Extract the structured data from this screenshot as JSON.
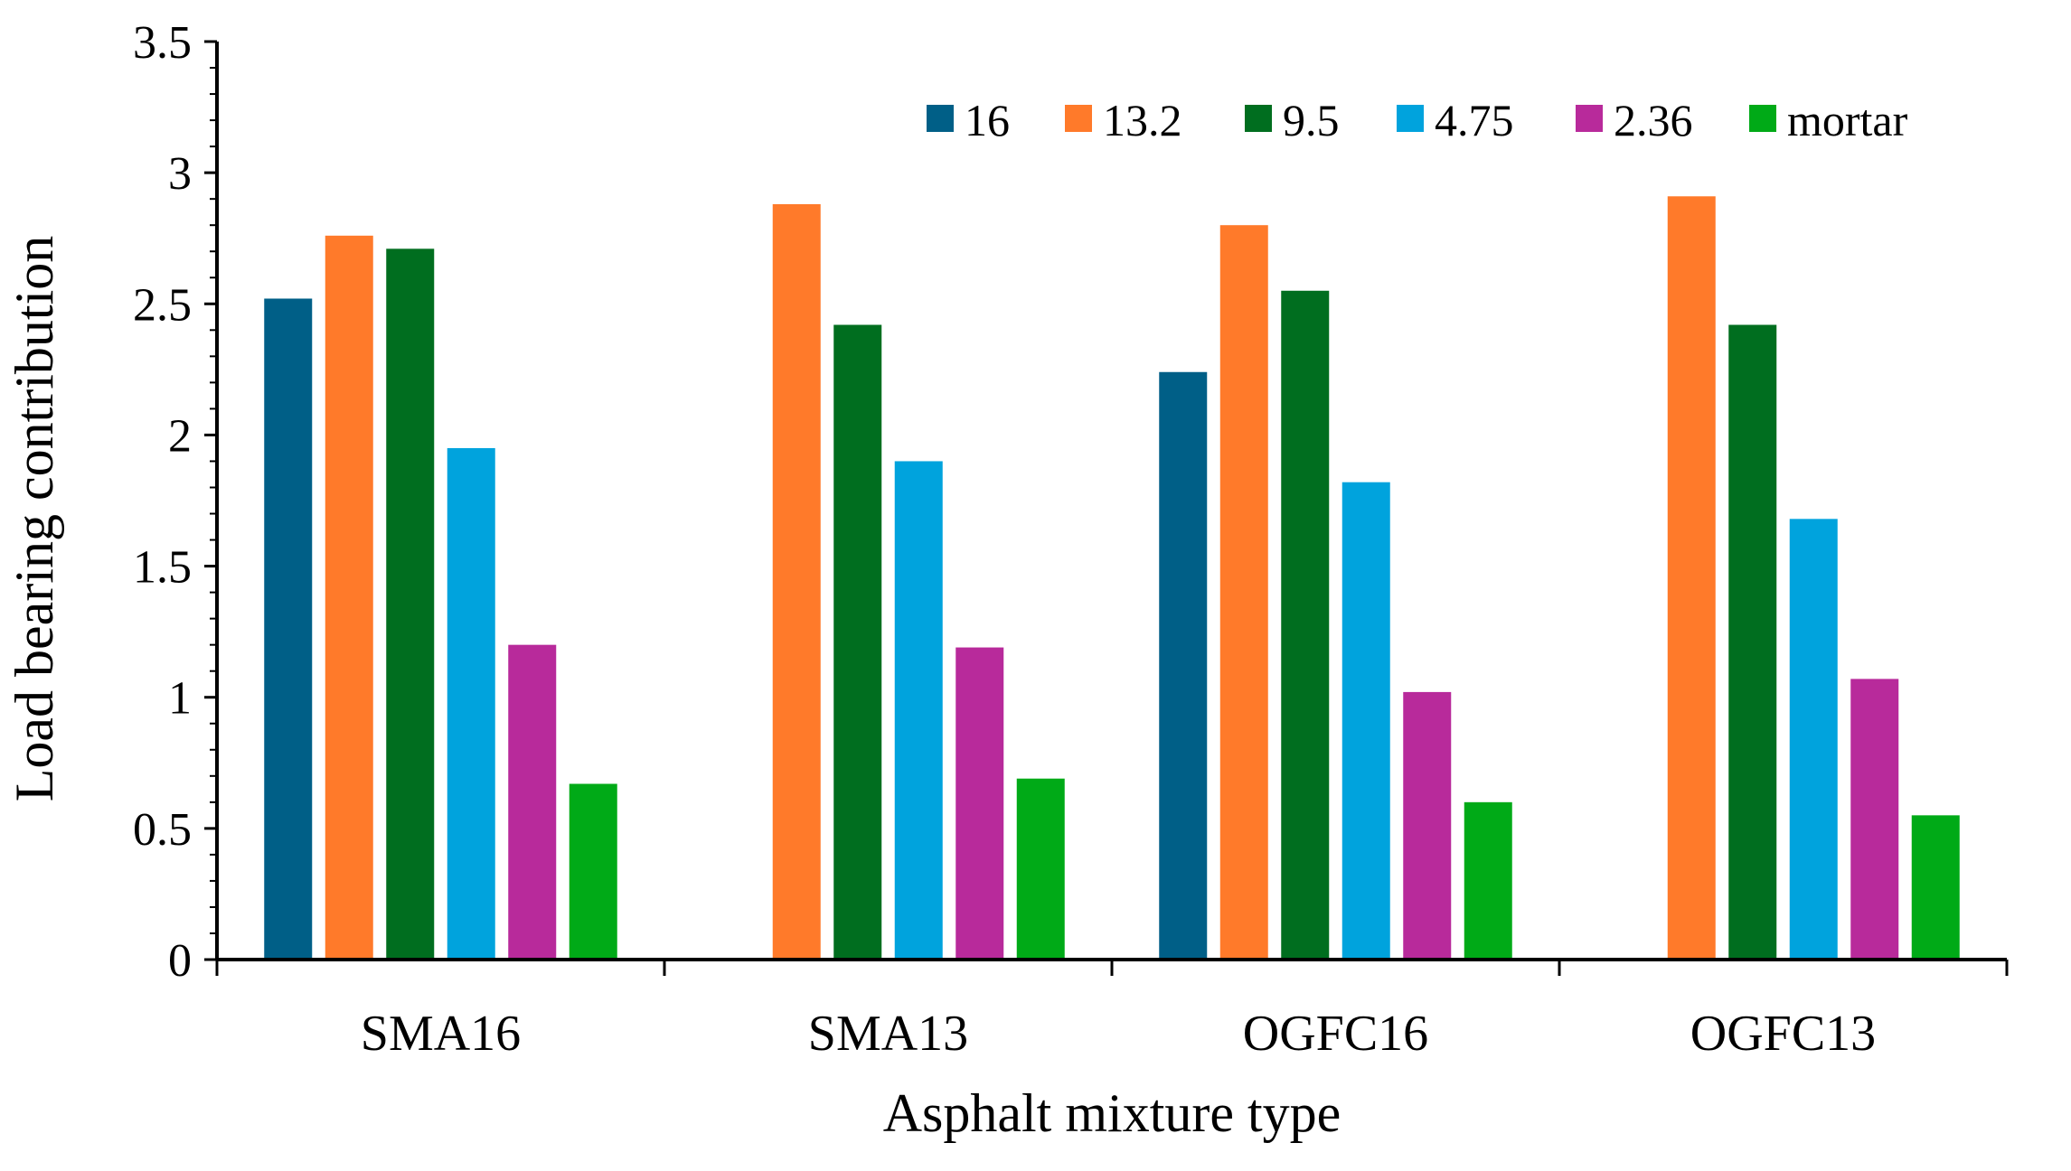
{
  "chart_data": {
    "type": "bar",
    "title": "",
    "xlabel": "Asphalt mixture type",
    "ylabel": "Load bearing contribution",
    "ylim": [
      0,
      3.5
    ],
    "yticks": [
      0,
      0.5,
      1,
      1.5,
      2,
      2.5,
      3,
      3.5
    ],
    "ytick_labels": [
      "0",
      "0.5",
      "1",
      "1.5",
      "2",
      "2.5",
      "3",
      "3.5"
    ],
    "grid": false,
    "legend_position": "top-right",
    "categories": [
      "SMA16",
      "SMA13",
      "OGFC16",
      "OGFC13"
    ],
    "series": [
      {
        "name": "16",
        "color": "#005f87",
        "values": [
          2.52,
          null,
          2.24,
          null
        ]
      },
      {
        "name": "13.2",
        "color": "#ff7a2a",
        "values": [
          2.76,
          2.88,
          2.8,
          2.91
        ]
      },
      {
        "name": "9.5",
        "color": "#006e1f",
        "values": [
          2.71,
          2.42,
          2.55,
          2.42
        ]
      },
      {
        "name": "4.75",
        "color": "#00a3dd",
        "values": [
          1.95,
          1.9,
          1.82,
          1.68
        ]
      },
      {
        "name": "2.36",
        "color": "#b82a9b",
        "values": [
          1.2,
          1.19,
          1.02,
          1.07
        ]
      },
      {
        "name": "mortar",
        "color": "#00aa17",
        "values": [
          0.67,
          0.69,
          0.6,
          0.55
        ]
      }
    ]
  }
}
